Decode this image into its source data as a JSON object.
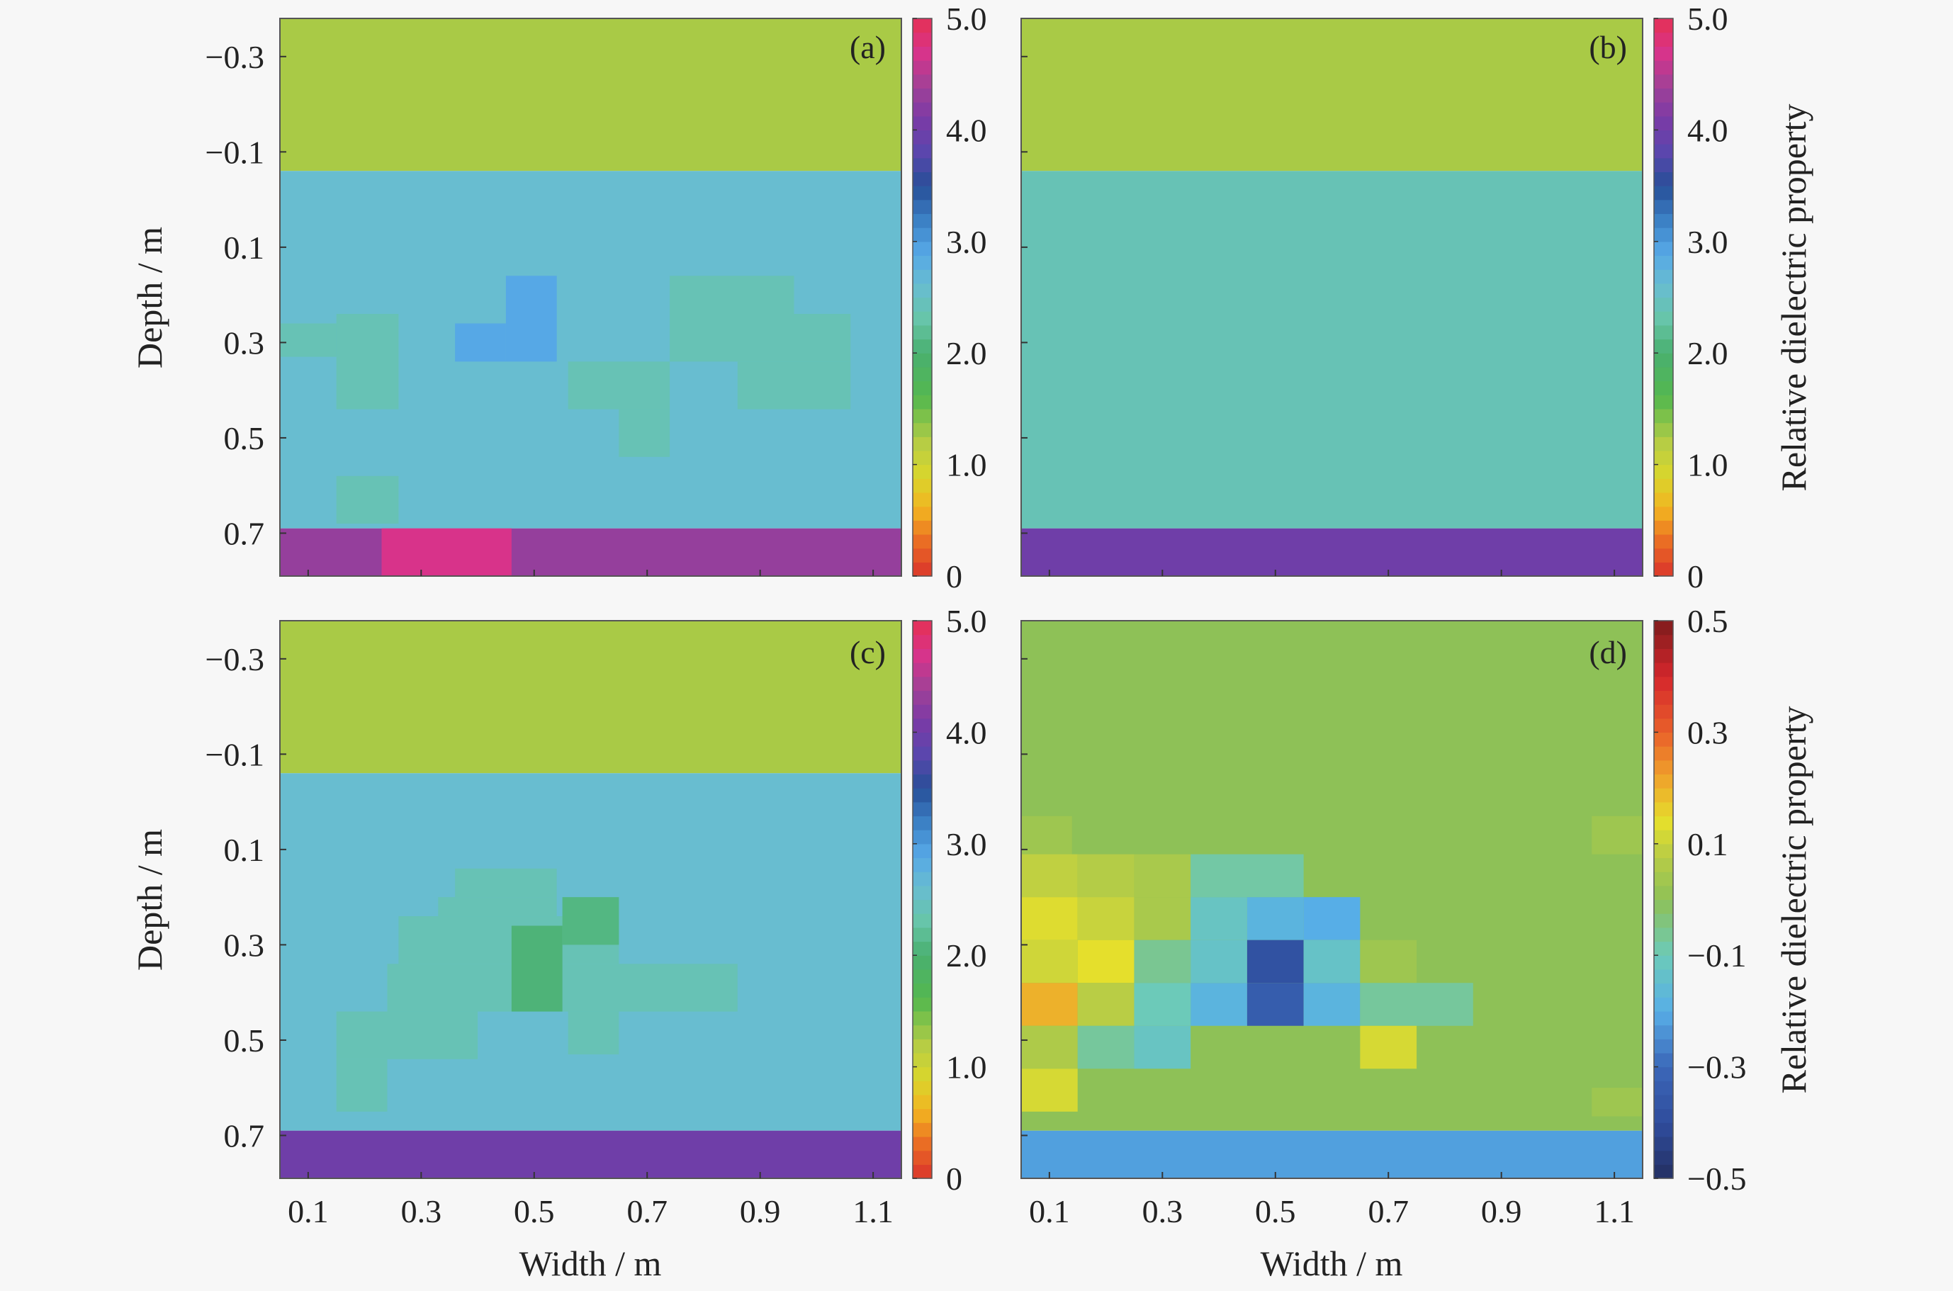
{
  "figure": {
    "background": "#f7f7f7",
    "tick_color": "#222222"
  },
  "chart_data": [
    {
      "id": "a",
      "type": "heatmap",
      "panel_label": "(a)",
      "xlabel": "",
      "ylabel": "Depth / m",
      "xlim": [
        0.05,
        1.15
      ],
      "ylim": [
        -0.38,
        0.79
      ],
      "xticks": [
        "0.1",
        "0.3",
        "0.5",
        "0.7",
        "0.9",
        "1.1"
      ],
      "yticks": [
        "−0.3",
        "−0.1",
        "0.1",
        "0.3",
        "0.5",
        "0.7"
      ],
      "show_xticks": false,
      "colorbar": {
        "range": [
          0,
          5
        ],
        "ticks": [
          "0",
          "1.0",
          "2.0",
          "3.0",
          "4.0",
          "5.0"
        ],
        "label": "",
        "colormap": "dielectric"
      },
      "regions": [
        {
          "x": [
            0.05,
            1.15
          ],
          "y": [
            -0.38,
            -0.06
          ],
          "value": 1.25
        },
        {
          "x": [
            0.05,
            1.15
          ],
          "y": [
            -0.06,
            0.69
          ],
          "value": 2.6
        },
        {
          "x": [
            0.05,
            1.15
          ],
          "y": [
            0.69,
            0.79
          ],
          "value": 4.3
        },
        {
          "x": [
            0.05,
            0.15
          ],
          "y": [
            0.26,
            0.33
          ],
          "value": 2.4
        },
        {
          "x": [
            0.15,
            0.26
          ],
          "y": [
            0.24,
            0.44
          ],
          "value": 2.4
        },
        {
          "x": [
            0.15,
            0.26
          ],
          "y": [
            0.58,
            0.68
          ],
          "value": 2.4
        },
        {
          "x": [
            0.36,
            0.45
          ],
          "y": [
            0.26,
            0.34
          ],
          "value": 2.9
        },
        {
          "x": [
            0.45,
            0.54
          ],
          "y": [
            0.16,
            0.34
          ],
          "value": 2.9
        },
        {
          "x": [
            0.56,
            0.74
          ],
          "y": [
            0.34,
            0.44
          ],
          "value": 2.4
        },
        {
          "x": [
            0.65,
            0.74
          ],
          "y": [
            0.44,
            0.54
          ],
          "value": 2.4
        },
        {
          "x": [
            0.74,
            0.96
          ],
          "y": [
            0.16,
            0.34
          ],
          "value": 2.4
        },
        {
          "x": [
            0.86,
            1.06
          ],
          "y": [
            0.34,
            0.44
          ],
          "value": 2.4
        },
        {
          "x": [
            0.96,
            1.06
          ],
          "y": [
            0.24,
            0.34
          ],
          "value": 2.4
        },
        {
          "x": [
            0.23,
            0.46
          ],
          "y": [
            0.69,
            0.79
          ],
          "value": 4.7
        }
      ]
    },
    {
      "id": "b",
      "type": "heatmap",
      "panel_label": "(b)",
      "xlabel": "",
      "ylabel": "",
      "xlim": [
        0.05,
        1.15
      ],
      "ylim": [
        -0.38,
        0.79
      ],
      "xticks": [
        "0.1",
        "0.3",
        "0.5",
        "0.7",
        "0.9",
        "1.1"
      ],
      "yticks": [
        "−0.3",
        "−0.1",
        "0.1",
        "0.3",
        "0.5",
        "0.7"
      ],
      "show_xticks": false,
      "colorbar": {
        "range": [
          0,
          5
        ],
        "ticks": [
          "0",
          "1.0",
          "2.0",
          "3.0",
          "4.0",
          "5.0"
        ],
        "label": "Relative dielectric property",
        "colormap": "dielectric"
      },
      "regions": [
        {
          "x": [
            0.05,
            1.15
          ],
          "y": [
            -0.38,
            -0.06
          ],
          "value": 1.25
        },
        {
          "x": [
            0.05,
            1.15
          ],
          "y": [
            -0.06,
            0.69
          ],
          "value": 2.4
        },
        {
          "x": [
            0.05,
            1.15
          ],
          "y": [
            0.69,
            0.79
          ],
          "value": 4.0
        }
      ]
    },
    {
      "id": "c",
      "type": "heatmap",
      "panel_label": "(c)",
      "xlabel": "Width / m",
      "ylabel": "Depth / m",
      "xlim": [
        0.05,
        1.15
      ],
      "ylim": [
        -0.38,
        0.79
      ],
      "xticks": [
        "0.1",
        "0.3",
        "0.5",
        "0.7",
        "0.9",
        "1.1"
      ],
      "yticks": [
        "−0.3",
        "−0.1",
        "0.1",
        "0.3",
        "0.5",
        "0.7"
      ],
      "show_xticks": true,
      "colorbar": {
        "range": [
          0,
          5
        ],
        "ticks": [
          "0",
          "1.0",
          "2.0",
          "3.0",
          "4.0",
          "5.0"
        ],
        "label": "",
        "colormap": "dielectric"
      },
      "regions": [
        {
          "x": [
            0.05,
            1.15
          ],
          "y": [
            -0.38,
            -0.06
          ],
          "value": 1.25
        },
        {
          "x": [
            0.05,
            1.15
          ],
          "y": [
            -0.06,
            0.69
          ],
          "value": 2.6
        },
        {
          "x": [
            0.05,
            1.15
          ],
          "y": [
            0.69,
            0.79
          ],
          "value": 4.0
        },
        {
          "x": [
            0.36,
            0.54
          ],
          "y": [
            0.14,
            0.2
          ],
          "value": 2.4
        },
        {
          "x": [
            0.33,
            0.54
          ],
          "y": [
            0.2,
            0.24
          ],
          "value": 2.4
        },
        {
          "x": [
            0.26,
            0.65
          ],
          "y": [
            0.24,
            0.34
          ],
          "value": 2.4
        },
        {
          "x": [
            0.24,
            0.86
          ],
          "y": [
            0.34,
            0.44
          ],
          "value": 2.4
        },
        {
          "x": [
            0.15,
            0.4
          ],
          "y": [
            0.44,
            0.54
          ],
          "value": 2.4
        },
        {
          "x": [
            0.15,
            0.24
          ],
          "y": [
            0.54,
            0.65
          ],
          "value": 2.4
        },
        {
          "x": [
            0.56,
            0.65
          ],
          "y": [
            0.44,
            0.53
          ],
          "value": 2.4
        },
        {
          "x": [
            0.55,
            0.65
          ],
          "y": [
            0.2,
            0.3
          ],
          "value": 2.1
        },
        {
          "x": [
            0.46,
            0.55
          ],
          "y": [
            0.26,
            0.44
          ],
          "value": 2.05
        }
      ]
    },
    {
      "id": "d",
      "type": "heatmap",
      "panel_label": "(d)",
      "xlabel": "Width / m",
      "ylabel": "",
      "xlim": [
        0.05,
        1.15
      ],
      "ylim": [
        -0.38,
        0.79
      ],
      "xticks": [
        "0.1",
        "0.3",
        "0.5",
        "0.7",
        "0.9",
        "1.1"
      ],
      "yticks": [
        "−0.3",
        "−0.1",
        "0.1",
        "0.3",
        "0.5",
        "0.7"
      ],
      "show_xticks": true,
      "colorbar": {
        "range": [
          -0.5,
          0.5
        ],
        "ticks": [
          "−0.5",
          "−0.3",
          "−0.1",
          "0.1",
          "0.3",
          "0.5"
        ],
        "label": "Relative dielectric property",
        "colormap": "difference"
      },
      "regions": [
        {
          "x": [
            0.05,
            1.15
          ],
          "y": [
            -0.38,
            0.69
          ],
          "value": 0.0
        },
        {
          "x": [
            0.05,
            1.15
          ],
          "y": [
            0.69,
            0.79
          ],
          "value": -0.22
        },
        {
          "x": [
            0.05,
            0.14
          ],
          "y": [
            0.03,
            0.11
          ],
          "value": 0.03
        },
        {
          "x": [
            1.06,
            1.15
          ],
          "y": [
            0.03,
            0.11
          ],
          "value": 0.03
        },
        {
          "x": [
            0.05,
            0.15
          ],
          "y": [
            0.11,
            0.2
          ],
          "value": 0.09
        },
        {
          "x": [
            0.15,
            0.25
          ],
          "y": [
            0.11,
            0.2
          ],
          "value": 0.07
        },
        {
          "x": [
            0.25,
            0.35
          ],
          "y": [
            0.11,
            0.2
          ],
          "value": 0.05
        },
        {
          "x": [
            0.35,
            0.55
          ],
          "y": [
            0.11,
            0.2
          ],
          "value": -0.08
        },
        {
          "x": [
            0.05,
            0.15
          ],
          "y": [
            0.2,
            0.29
          ],
          "value": 0.13
        },
        {
          "x": [
            0.15,
            0.25
          ],
          "y": [
            0.2,
            0.29
          ],
          "value": 0.1
        },
        {
          "x": [
            0.25,
            0.35
          ],
          "y": [
            0.2,
            0.29
          ],
          "value": 0.05
        },
        {
          "x": [
            0.35,
            0.45
          ],
          "y": [
            0.2,
            0.29
          ],
          "value": -0.12
        },
        {
          "x": [
            0.45,
            0.55
          ],
          "y": [
            0.2,
            0.29
          ],
          "value": -0.18
        },
        {
          "x": [
            0.55,
            0.65
          ],
          "y": [
            0.2,
            0.29
          ],
          "value": -0.2
        },
        {
          "x": [
            0.05,
            0.15
          ],
          "y": [
            0.29,
            0.38
          ],
          "value": 0.11
        },
        {
          "x": [
            0.15,
            0.25
          ],
          "y": [
            0.29,
            0.38
          ],
          "value": 0.14
        },
        {
          "x": [
            0.25,
            0.35
          ],
          "y": [
            0.29,
            0.38
          ],
          "value": -0.06
        },
        {
          "x": [
            0.35,
            0.45
          ],
          "y": [
            0.29,
            0.38
          ],
          "value": -0.13
        },
        {
          "x": [
            0.45,
            0.55
          ],
          "y": [
            0.29,
            0.38
          ],
          "value": -0.38
        },
        {
          "x": [
            0.55,
            0.65
          ],
          "y": [
            0.29,
            0.38
          ],
          "value": -0.13
        },
        {
          "x": [
            0.65,
            0.75
          ],
          "y": [
            0.29,
            0.38
          ],
          "value": 0.03
        },
        {
          "x": [
            0.05,
            0.15
          ],
          "y": [
            0.38,
            0.47
          ],
          "value": 0.2
        },
        {
          "x": [
            0.15,
            0.25
          ],
          "y": [
            0.38,
            0.47
          ],
          "value": 0.08
        },
        {
          "x": [
            0.25,
            0.35
          ],
          "y": [
            0.38,
            0.47
          ],
          "value": -0.1
        },
        {
          "x": [
            0.35,
            0.45
          ],
          "y": [
            0.38,
            0.47
          ],
          "value": -0.18
        },
        {
          "x": [
            0.45,
            0.55
          ],
          "y": [
            0.38,
            0.47
          ],
          "value": -0.34
        },
        {
          "x": [
            0.55,
            0.65
          ],
          "y": [
            0.38,
            0.47
          ],
          "value": -0.18
        },
        {
          "x": [
            0.65,
            0.85
          ],
          "y": [
            0.38,
            0.47
          ],
          "value": -0.07
        },
        {
          "x": [
            0.05,
            0.15
          ],
          "y": [
            0.47,
            0.56
          ],
          "value": 0.06
        },
        {
          "x": [
            0.15,
            0.25
          ],
          "y": [
            0.47,
            0.56
          ],
          "value": -0.07
        },
        {
          "x": [
            0.25,
            0.35
          ],
          "y": [
            0.47,
            0.56
          ],
          "value": -0.12
        },
        {
          "x": [
            0.65,
            0.75
          ],
          "y": [
            0.47,
            0.56
          ],
          "value": 0.12
        },
        {
          "x": [
            0.05,
            0.15
          ],
          "y": [
            0.56,
            0.65
          ],
          "value": 0.12
        },
        {
          "x": [
            1.06,
            1.15
          ],
          "y": [
            0.6,
            0.66
          ],
          "value": 0.03
        }
      ]
    }
  ]
}
